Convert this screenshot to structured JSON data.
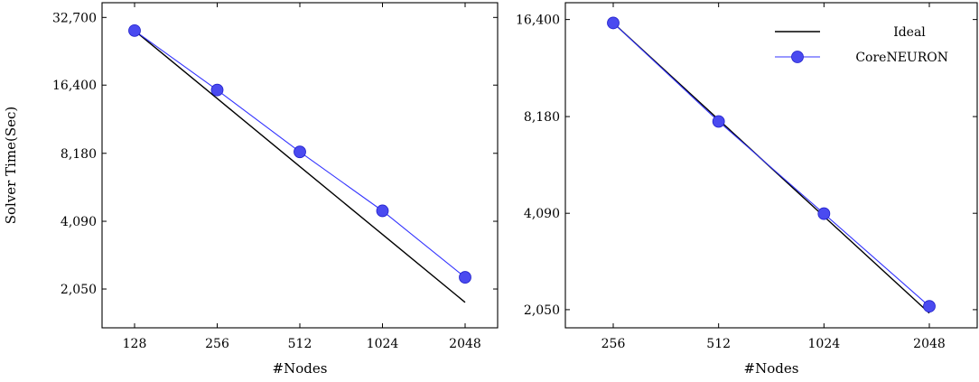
{
  "chart_data": [
    {
      "type": "line",
      "scale": "log2-log2",
      "x": [
        128,
        256,
        512,
        1024,
        2048
      ],
      "x_tick_labels": [
        "128",
        "256",
        "512",
        "1024",
        "2048"
      ],
      "y_ticks": [
        2050,
        4090,
        8180,
        16400,
        32700
      ],
      "y_tick_labels": [
        "2,050",
        "4,090",
        "8,180",
        "16,400",
        "32,700"
      ],
      "xlabel": "#Nodes",
      "ylabel": "Solver Time(Sec)",
      "ylim": [
        1380,
        38000
      ],
      "series": [
        {
          "name": "Ideal",
          "color": "#000000",
          "values": [
            28600,
            14300,
            7150,
            3575,
            1790
          ]
        },
        {
          "name": "CoreNEURON",
          "color": "#3333ff",
          "values": [
            28600,
            15600,
            8300,
            4550,
            2310
          ]
        }
      ],
      "legend": false
    },
    {
      "type": "line",
      "scale": "log2-log2",
      "x": [
        256,
        512,
        1024,
        2048
      ],
      "x_tick_labels": [
        "256",
        "512",
        "1024",
        "2048"
      ],
      "y_ticks": [
        2050,
        4090,
        8180,
        16400
      ],
      "y_tick_labels": [
        "2,050",
        "4,090",
        "8,180",
        "16,400"
      ],
      "xlabel": "#Nodes",
      "ylabel": "",
      "ylim": [
        1800,
        18500
      ],
      "series": [
        {
          "name": "Ideal",
          "color": "#000000",
          "values": [
            16000,
            8000,
            4000,
            2000
          ]
        },
        {
          "name": "CoreNEURON",
          "color": "#3333ff",
          "values": [
            16000,
            7900,
            4080,
            2100
          ]
        }
      ],
      "legend": "top-right"
    }
  ]
}
